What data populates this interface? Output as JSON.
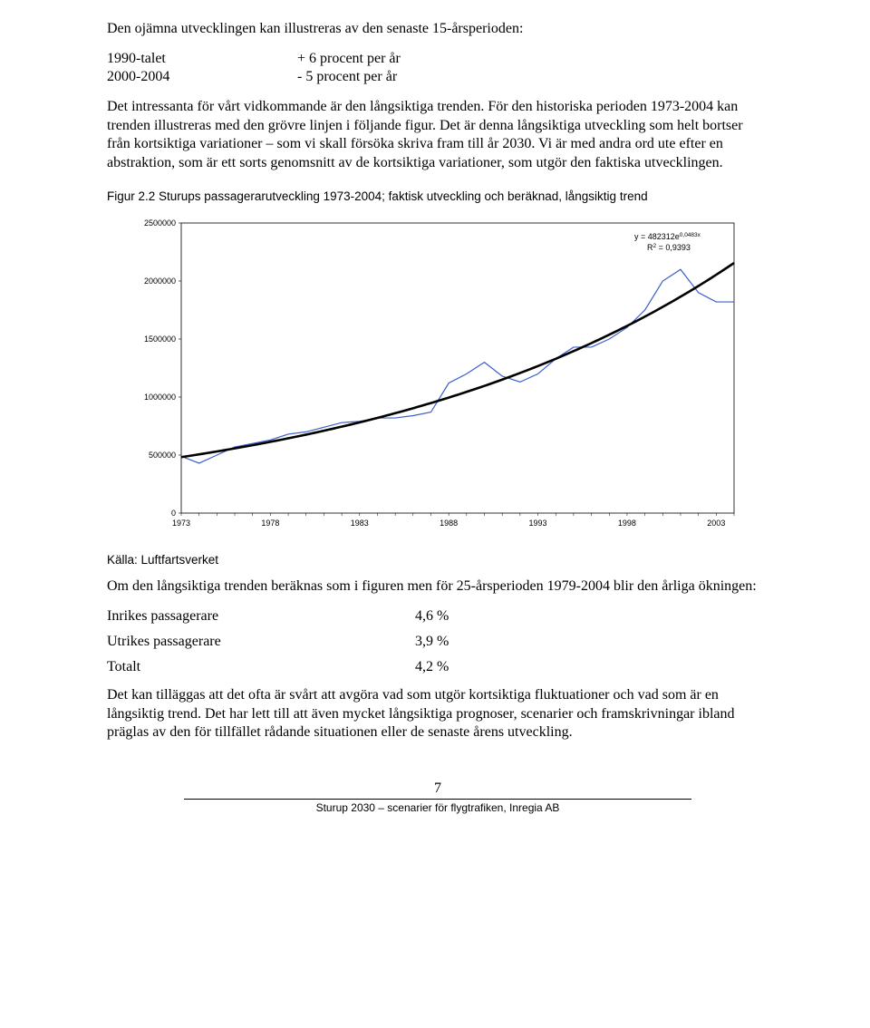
{
  "para1": "Den ojämna utvecklingen kan illustreras av den senaste 15-årsperioden:",
  "periods": [
    {
      "label": "1990-talet",
      "value": "+ 6 procent per år"
    },
    {
      "label": "2000-2004",
      "value": "- 5 procent per år"
    }
  ],
  "para2": "Det intressanta för vårt vidkommande är den långsiktiga trenden. För den historiska perioden 1973-2004 kan trenden illustreras med den grövre linjen i följande figur. Det är denna långsiktiga utveckling som helt bortser från kortsiktiga variationer – som vi skall försöka skriva fram till år 2030. Vi är med andra ord ute efter en abstraktion, som är ett sorts genomsnitt av de kortsiktiga variationer, som utgör den faktiska utvecklingen.",
  "caption": "Figur 2.2 Sturups passagerarutveckling 1973-2004; faktisk utveckling och beräknad, långsiktig trend",
  "chart": {
    "type": "line",
    "background_color": "#ffffff",
    "plot_border_color": "#000000",
    "actual_line_color": "#3a5fcd",
    "actual_line_width": 1.2,
    "trend_line_color": "#000000",
    "trend_line_width": 2.6,
    "tick_font_size": 9,
    "annotation_font_size": 9,
    "ylim": [
      0,
      2500000
    ],
    "ytick_step": 500000,
    "yticks": [
      "0",
      "500000",
      "1000000",
      "1500000",
      "2000000",
      "2500000"
    ],
    "xlim": [
      1973,
      2004
    ],
    "xticks": [
      1973,
      1978,
      1983,
      1988,
      1993,
      1998,
      2003
    ],
    "equation_lines": [
      "y = 482312e",
      "0,0483x",
      "R",
      "2",
      " = 0,9393"
    ],
    "actual_series_years": [
      1973,
      1974,
      1975,
      1976,
      1977,
      1978,
      1979,
      1980,
      1981,
      1982,
      1983,
      1984,
      1985,
      1986,
      1987,
      1988,
      1989,
      1990,
      1991,
      1992,
      1993,
      1994,
      1995,
      1996,
      1997,
      1998,
      1999,
      2000,
      2001,
      2002,
      2003,
      2004
    ],
    "actual_series_values": [
      490000,
      430000,
      500000,
      570000,
      600000,
      630000,
      680000,
      700000,
      740000,
      780000,
      790000,
      820000,
      820000,
      840000,
      870000,
      1120000,
      1200000,
      1300000,
      1180000,
      1130000,
      1200000,
      1330000,
      1430000,
      1430000,
      1500000,
      1600000,
      1750000,
      2000000,
      2100000,
      1900000,
      1820000,
      1820000
    ],
    "trend_base": 482312,
    "trend_exp": 0.0483
  },
  "source": "Källa: Luftfartsverket",
  "para3": "Om den långsiktiga trenden beräknas som i figuren men för 25-årsperioden 1979-2004 blir den årliga ökningen:",
  "percentages": [
    {
      "label": "Inrikes passagerare",
      "value": "4,6 %"
    },
    {
      "label": "Utrikes passagerare",
      "value": "3,9 %"
    },
    {
      "label": "Totalt",
      "value": "4,2 %"
    }
  ],
  "para4": "Det kan tilläggas att det ofta är svårt att avgöra vad som utgör kortsiktiga fluktuationer och vad som är en långsiktig trend. Det har lett till att även mycket långsiktiga prognoser, scenarier och framskrivningar ibland präglas av den för tillfället rådande situationen eller de senaste årens utveckling.",
  "page_number": "7",
  "footer": "Sturup 2030 – scenarier för flygtrafiken, Inregia AB"
}
